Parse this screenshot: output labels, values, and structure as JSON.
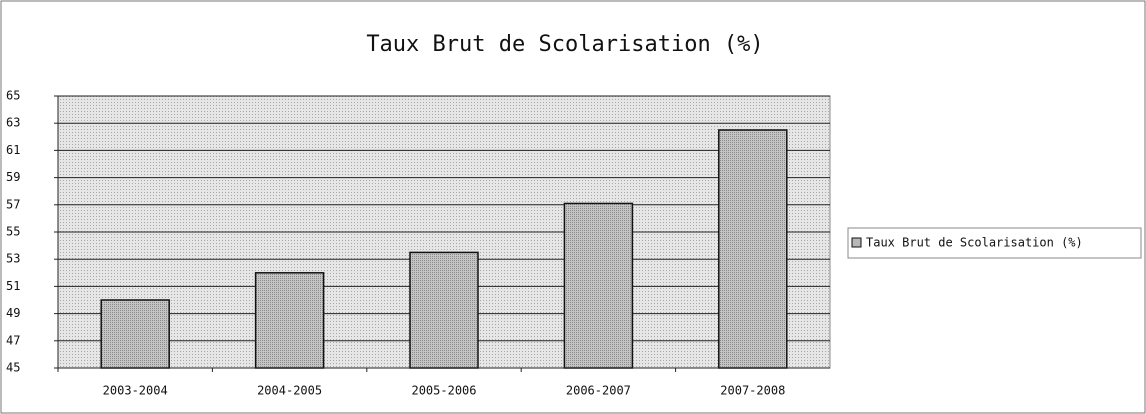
{
  "chart_data": {
    "type": "bar",
    "title": "Taux Brut de Scolarisation (%)",
    "categories": [
      "2003-2004",
      "2004-2005",
      "2005-2006",
      "2006-2007",
      "2007-2008"
    ],
    "series": [
      {
        "name": "Taux Brut de Scolarisation (%)",
        "color": "#b8b8b8",
        "values": [
          50.0,
          52.0,
          53.5,
          57.1,
          62.5
        ]
      }
    ],
    "ylim": [
      45,
      65
    ],
    "yticks": [
      45,
      47,
      49,
      51,
      53,
      55,
      57,
      59,
      61,
      63,
      65
    ],
    "grid": true,
    "legend": "right"
  }
}
